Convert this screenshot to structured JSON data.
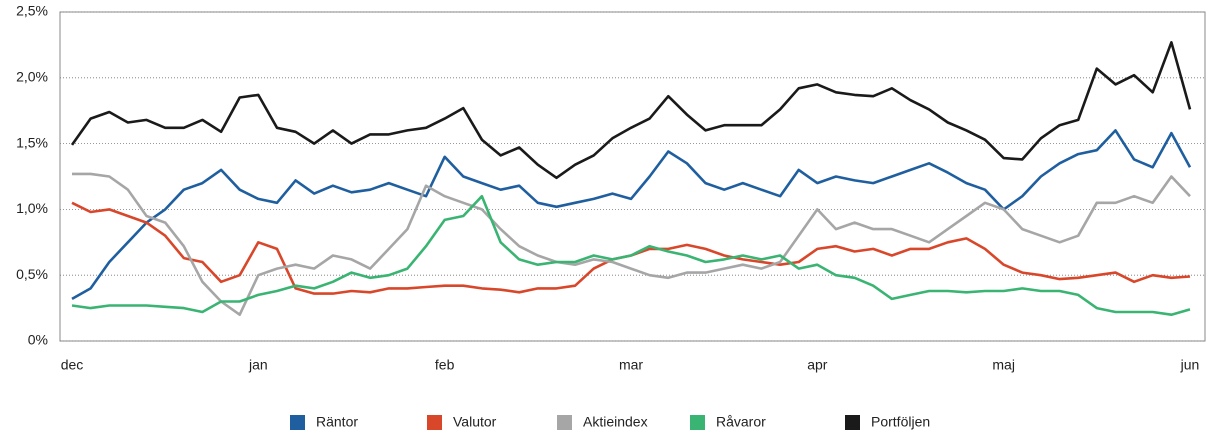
{
  "chart_data": {
    "type": "line",
    "categories": [
      "dec",
      null,
      null,
      null,
      null,
      null,
      null,
      null,
      null,
      null,
      "jan",
      null,
      null,
      null,
      null,
      null,
      null,
      null,
      null,
      null,
      "feb",
      null,
      null,
      null,
      null,
      null,
      null,
      null,
      null,
      null,
      "mar",
      null,
      null,
      null,
      null,
      null,
      null,
      null,
      null,
      null,
      "apr",
      null,
      null,
      null,
      null,
      null,
      null,
      null,
      null,
      null,
      "maj",
      null,
      null,
      null,
      null,
      null,
      null,
      null,
      null,
      null,
      "jun"
    ],
    "series": [
      {
        "name": "Räntor",
        "color": "#1f5fa0",
        "values": [
          0.32,
          0.4,
          0.6,
          0.75,
          0.9,
          1.0,
          1.15,
          1.2,
          1.3,
          1.15,
          1.08,
          1.05,
          1.22,
          1.12,
          1.18,
          1.13,
          1.15,
          1.2,
          1.15,
          1.1,
          1.4,
          1.25,
          1.2,
          1.15,
          1.18,
          1.05,
          1.02,
          1.05,
          1.08,
          1.12,
          1.08,
          1.25,
          1.44,
          1.35,
          1.2,
          1.15,
          1.2,
          1.15,
          1.1,
          1.3,
          1.2,
          1.25,
          1.22,
          1.2,
          1.25,
          1.3,
          1.35,
          1.28,
          1.2,
          1.15,
          1.0,
          1.1,
          1.25,
          1.35,
          1.42,
          1.45,
          1.6,
          1.38,
          1.32,
          1.58,
          1.32
        ]
      },
      {
        "name": "Valutor",
        "color": "#d9472b",
        "values": [
          1.05,
          0.98,
          1.0,
          0.95,
          0.9,
          0.8,
          0.63,
          0.6,
          0.45,
          0.5,
          0.75,
          0.7,
          0.4,
          0.36,
          0.36,
          0.38,
          0.37,
          0.4,
          0.4,
          0.41,
          0.42,
          0.42,
          0.4,
          0.39,
          0.37,
          0.4,
          0.4,
          0.42,
          0.55,
          0.62,
          0.65,
          0.7,
          0.7,
          0.73,
          0.7,
          0.65,
          0.62,
          0.6,
          0.58,
          0.6,
          0.7,
          0.72,
          0.68,
          0.7,
          0.65,
          0.7,
          0.7,
          0.75,
          0.78,
          0.7,
          0.58,
          0.52,
          0.5,
          0.47,
          0.48,
          0.5,
          0.52,
          0.45,
          0.5,
          0.48,
          0.49
        ]
      },
      {
        "name": "Aktieindex",
        "color": "#a6a6a6",
        "values": [
          1.27,
          1.27,
          1.25,
          1.15,
          0.95,
          0.9,
          0.72,
          0.45,
          0.3,
          0.2,
          0.5,
          0.55,
          0.58,
          0.55,
          0.65,
          0.62,
          0.55,
          0.7,
          0.85,
          1.18,
          1.1,
          1.05,
          1.0,
          0.85,
          0.72,
          0.65,
          0.6,
          0.58,
          0.62,
          0.6,
          0.55,
          0.5,
          0.48,
          0.52,
          0.52,
          0.55,
          0.58,
          0.55,
          0.6,
          0.8,
          1.0,
          0.85,
          0.9,
          0.85,
          0.85,
          0.8,
          0.75,
          0.85,
          0.95,
          1.05,
          1.0,
          0.85,
          0.8,
          0.75,
          0.8,
          1.05,
          1.05,
          1.1,
          1.05,
          1.25,
          1.1
        ]
      },
      {
        "name": "Råvaror",
        "color": "#3ab472",
        "values": [
          0.27,
          0.25,
          0.27,
          0.27,
          0.27,
          0.26,
          0.25,
          0.22,
          0.3,
          0.3,
          0.35,
          0.38,
          0.42,
          0.4,
          0.45,
          0.52,
          0.48,
          0.5,
          0.55,
          0.72,
          0.92,
          0.95,
          1.1,
          0.75,
          0.62,
          0.58,
          0.6,
          0.6,
          0.65,
          0.62,
          0.65,
          0.72,
          0.68,
          0.65,
          0.6,
          0.62,
          0.65,
          0.62,
          0.65,
          0.55,
          0.58,
          0.5,
          0.48,
          0.42,
          0.32,
          0.35,
          0.38,
          0.38,
          0.37,
          0.38,
          0.38,
          0.4,
          0.38,
          0.38,
          0.35,
          0.25,
          0.22,
          0.22,
          0.22,
          0.2,
          0.24
        ]
      },
      {
        "name": "Portföljen",
        "color": "#1a1a1a",
        "values": [
          1.49,
          1.69,
          1.74,
          1.66,
          1.68,
          1.62,
          1.62,
          1.68,
          1.59,
          1.85,
          1.87,
          1.62,
          1.59,
          1.5,
          1.6,
          1.5,
          1.57,
          1.57,
          1.6,
          1.62,
          1.69,
          1.77,
          1.53,
          1.41,
          1.47,
          1.34,
          1.24,
          1.34,
          1.41,
          1.54,
          1.62,
          1.69,
          1.86,
          1.72,
          1.6,
          1.64,
          1.64,
          1.64,
          1.76,
          1.92,
          1.95,
          1.89,
          1.87,
          1.86,
          1.92,
          1.83,
          1.76,
          1.66,
          1.6,
          1.53,
          1.39,
          1.38,
          1.54,
          1.64,
          1.68,
          2.07,
          1.95,
          2.02,
          1.89,
          2.27,
          1.76
        ]
      }
    ],
    "ylim": [
      0,
      2.5
    ],
    "yticks": [
      {
        "value": 0,
        "label": "0%"
      },
      {
        "value": 0.5,
        "label": "0,5%"
      },
      {
        "value": 1,
        "label": "1,0%"
      },
      {
        "value": 1.5,
        "label": "1,5%"
      },
      {
        "value": 2,
        "label": "2,0%"
      },
      {
        "value": 2.5,
        "label": "2,5%"
      }
    ],
    "grid": true,
    "legend": "bottom"
  }
}
